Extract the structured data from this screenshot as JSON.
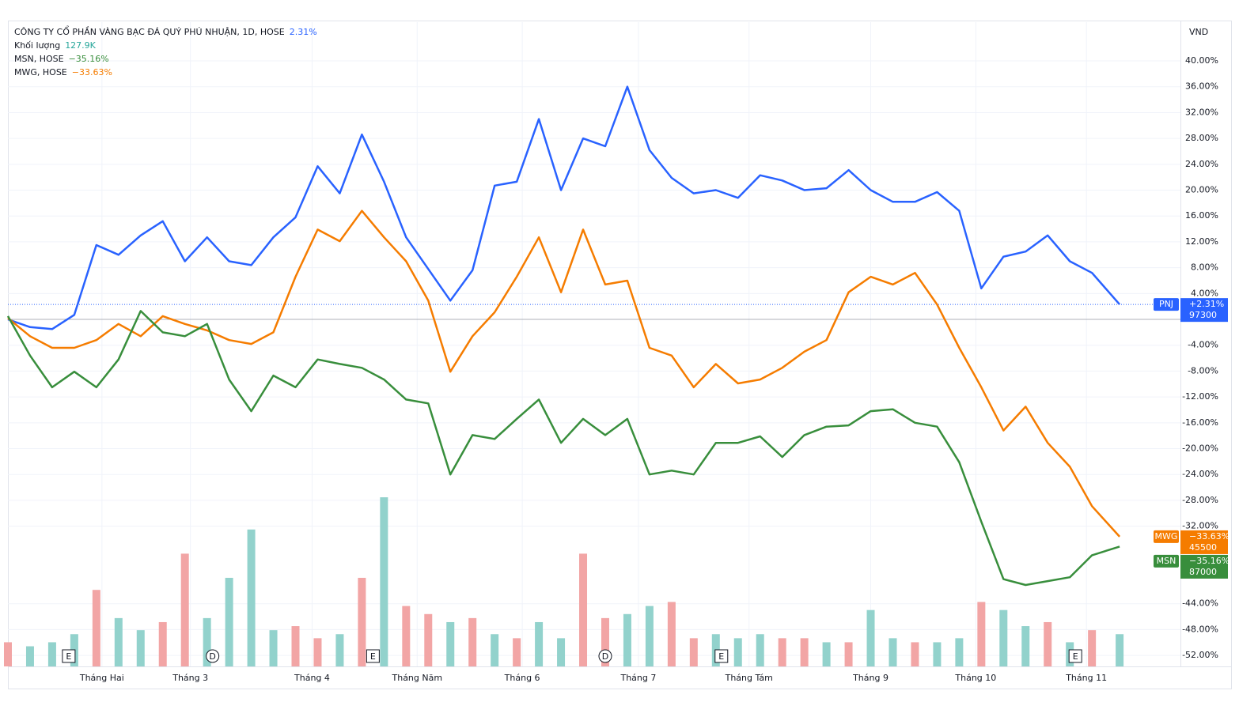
{
  "chart_data": {
    "type": "line",
    "legend": [
      {
        "label": "CÔNG TY CỔ PHẦN VÀNG BẠC ĐÁ QUÝ PHÚ NHUẬN, 1D, HOSE",
        "value": "2.31%",
        "color": "#2962ff"
      },
      {
        "label": "Khối lượng",
        "value": "127.9K",
        "color": "#26a69a"
      },
      {
        "label": "MSN, HOSE",
        "value": "−35.16%",
        "color": "#388e3c"
      },
      {
        "label": "MWG, HOSE",
        "value": "−33.63%",
        "color": "#f57c00"
      }
    ],
    "unit": "VND",
    "x": [
      0,
      4,
      8,
      12,
      16,
      20,
      24,
      28,
      32,
      36,
      40,
      44,
      48,
      52,
      56,
      60,
      64,
      68,
      72,
      76,
      80,
      84,
      88,
      92,
      96,
      100,
      104,
      108,
      112,
      116,
      120,
      124,
      128,
      132,
      136,
      140,
      144,
      148,
      152,
      156,
      160,
      164,
      168,
      172,
      176,
      180,
      184,
      188,
      192,
      196,
      201
    ],
    "xlim": [
      0,
      212
    ],
    "xticks": [
      {
        "value": 17,
        "label": "Tháng Hai"
      },
      {
        "value": 33,
        "label": "Tháng 3"
      },
      {
        "value": 55,
        "label": "Tháng 4"
      },
      {
        "value": 74,
        "label": "Tháng Năm"
      },
      {
        "value": 93,
        "label": "Tháng 6"
      },
      {
        "value": 114,
        "label": "Tháng 7"
      },
      {
        "value": 134,
        "label": "Tháng Tám"
      },
      {
        "value": 156,
        "label": "Tháng 9"
      },
      {
        "value": 175,
        "label": "Tháng 10"
      },
      {
        "value": 195,
        "label": "Tháng 11"
      }
    ],
    "ylim": [
      -53.7,
      46
    ],
    "yticks": [
      {
        "value": 40,
        "label": "40.00%"
      },
      {
        "value": 36,
        "label": "36.00%"
      },
      {
        "value": 32,
        "label": "32.00%"
      },
      {
        "value": 28,
        "label": "28.00%"
      },
      {
        "value": 24,
        "label": "24.00%"
      },
      {
        "value": 20,
        "label": "20.00%"
      },
      {
        "value": 16,
        "label": "16.00%"
      },
      {
        "value": 12,
        "label": "12.00%"
      },
      {
        "value": 8,
        "label": "8.00%"
      },
      {
        "value": 4,
        "label": "4.00%"
      },
      {
        "value": -4,
        "label": "-4.00%"
      },
      {
        "value": -8,
        "label": "-8.00%"
      },
      {
        "value": -12,
        "label": "-12.00%"
      },
      {
        "value": -16,
        "label": "-16.00%"
      },
      {
        "value": -20,
        "label": "-20.00%"
      },
      {
        "value": -24,
        "label": "-24.00%"
      },
      {
        "value": -28,
        "label": "-28.00%"
      },
      {
        "value": -32,
        "label": "-32.00%"
      },
      {
        "value": -44,
        "label": "-44.00%"
      },
      {
        "value": -48,
        "label": "-48.00%"
      },
      {
        "value": -52,
        "label": "-52.00%"
      }
    ],
    "grid": true,
    "series": [
      {
        "name": "PNJ",
        "color": "#2962ff",
        "change_label": "+2.31%",
        "price": 97300,
        "dotted_level": true,
        "values": [
          0,
          -1.2,
          -1.5,
          0.7,
          11.5,
          10,
          13,
          15.2,
          9,
          12.7,
          9,
          8.4,
          12.7,
          15.8,
          23.7,
          19.5,
          28.6,
          21.3,
          12.7,
          7.8,
          2.9,
          7.6,
          20.7,
          21.3,
          31,
          20,
          28,
          26.8,
          36,
          26.2,
          21.9,
          19.5,
          20,
          18.8,
          22.3,
          21.5,
          20,
          20.3,
          23.1,
          20,
          18.2,
          18.2,
          19.7,
          16.8,
          4.8,
          9.7,
          10.5,
          13,
          9,
          7.2,
          2.31
        ]
      },
      {
        "name": "MWG",
        "color": "#f57c00",
        "change_label": "−33.63%",
        "price": 45500,
        "dotted_level": false,
        "values": [
          0.2,
          -2.6,
          -4.4,
          -4.4,
          -3.2,
          -0.7,
          -2.6,
          0.5,
          -0.7,
          -1.7,
          -3.2,
          -3.8,
          -2,
          6.6,
          13.9,
          12.1,
          16.8,
          12.7,
          9,
          2.9,
          -8.1,
          -2.6,
          1.1,
          6.6,
          12.7,
          4.2,
          13.9,
          5.4,
          6,
          -4.4,
          -5.6,
          -10.5,
          -6.9,
          -9.9,
          -9.3,
          -7.5,
          -5,
          -3.2,
          4.2,
          6.6,
          5.4,
          7.2,
          2.3,
          -4.4,
          -10.5,
          -17.2,
          -13.5,
          -19.1,
          -22.8,
          -28.9,
          -33.63
        ]
      },
      {
        "name": "MSN",
        "color": "#388e3c",
        "change_label": "−35.16%",
        "price": 87000,
        "dotted_level": false,
        "values": [
          0.5,
          -5.6,
          -10.5,
          -8.1,
          -10.5,
          -6.2,
          1.3,
          -2,
          -2.6,
          -0.7,
          -9.3,
          -14.2,
          -8.7,
          -10.5,
          -6.2,
          -6.9,
          -7.5,
          -9.3,
          -12.4,
          -13,
          -24,
          -17.9,
          -18.5,
          -15.4,
          -12.4,
          -19.1,
          -15.4,
          -17.9,
          -15.4,
          -24,
          -23.4,
          -24,
          -19.1,
          -19.1,
          -18.1,
          -21.3,
          -17.9,
          -16.6,
          -16.4,
          -14.2,
          -13.9,
          -16,
          -16.6,
          -22.1,
          -31.3,
          -40.2,
          -41.1,
          -40.5,
          -39.9,
          -36.5,
          -35.16
        ]
      }
    ],
    "volume": {
      "vlim": [
        0,
        800
      ],
      "values": [
        30,
        25,
        30,
        40,
        95,
        60,
        45,
        55,
        140,
        60,
        110,
        170,
        45,
        50,
        35,
        40,
        110,
        210,
        75,
        65,
        55,
        60,
        40,
        35,
        55,
        35,
        140,
        60,
        65,
        75,
        80,
        35,
        40,
        35,
        40,
        35,
        35,
        30,
        30,
        70,
        35,
        30,
        30,
        35,
        80,
        70,
        50,
        55,
        30,
        45,
        40
      ],
      "colors": [
        "#f2a5a5",
        "#92d2cc",
        "#92d2cc",
        "#92d2cc",
        "#f2a5a5",
        "#92d2cc",
        "#92d2cc",
        "#f2a5a5",
        "#f2a5a5",
        "#92d2cc",
        "#92d2cc",
        "#92d2cc",
        "#92d2cc",
        "#f2a5a5",
        "#f2a5a5",
        "#92d2cc",
        "#f2a5a5",
        "#92d2cc",
        "#f2a5a5",
        "#f2a5a5",
        "#92d2cc",
        "#f2a5a5",
        "#92d2cc",
        "#f2a5a5",
        "#92d2cc",
        "#92d2cc",
        "#f2a5a5",
        "#f2a5a5",
        "#92d2cc",
        "#92d2cc",
        "#f2a5a5",
        "#f2a5a5",
        "#92d2cc",
        "#92d2cc",
        "#92d2cc",
        "#f2a5a5",
        "#f2a5a5",
        "#92d2cc",
        "#f2a5a5",
        "#92d2cc",
        "#92d2cc",
        "#f2a5a5",
        "#92d2cc",
        "#92d2cc",
        "#f2a5a5",
        "#92d2cc",
        "#92d2cc",
        "#f2a5a5",
        "#92d2cc",
        "#f2a5a5",
        "#92d2cc"
      ]
    },
    "events": [
      {
        "x": 11,
        "label": "E",
        "shape": "square"
      },
      {
        "x": 37,
        "label": "D",
        "shape": "circle"
      },
      {
        "x": 66,
        "label": "E",
        "shape": "square"
      },
      {
        "x": 108,
        "label": "D",
        "shape": "circle"
      },
      {
        "x": 129,
        "label": "E",
        "shape": "square"
      },
      {
        "x": 193,
        "label": "E",
        "shape": "square"
      }
    ]
  }
}
